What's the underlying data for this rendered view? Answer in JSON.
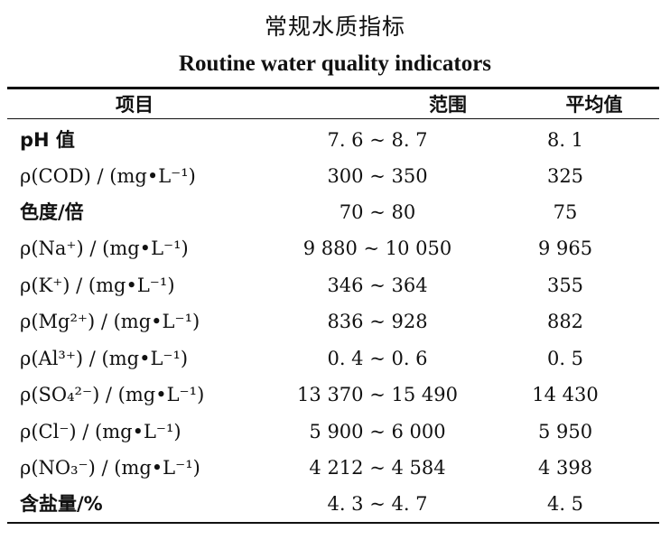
{
  "title_zh": "常规水质指标",
  "title_en": "Routine water quality indicators",
  "headers": {
    "item": "项目",
    "range": "范围",
    "average": "平均值"
  },
  "rows": [
    {
      "name": "pH 值",
      "range": "7. 6 ~ 8. 7",
      "avg": "8. 1"
    },
    {
      "name": "ρ(COD) / (mg•L⁻¹)",
      "range": "300 ~ 350",
      "avg": "325"
    },
    {
      "name": "色度/倍",
      "range": "70 ~ 80",
      "avg": "75"
    },
    {
      "name": "ρ(Na⁺) / (mg•L⁻¹)",
      "range": "9 880 ~ 10 050",
      "avg": "9 965"
    },
    {
      "name": "ρ(K⁺) / (mg•L⁻¹)",
      "range": "346 ~ 364",
      "avg": "355"
    },
    {
      "name": "ρ(Mg²⁺) / (mg•L⁻¹)",
      "range": "836 ~ 928",
      "avg": "882"
    },
    {
      "name": "ρ(Al³⁺) / (mg•L⁻¹)",
      "range": "0. 4 ~ 0. 6",
      "avg": "0. 5"
    },
    {
      "name": "ρ(SO₄²⁻) / (mg•L⁻¹)",
      "range": "13 370 ~ 15 490",
      "avg": "14 430"
    },
    {
      "name": "ρ(Cl⁻) / (mg•L⁻¹)",
      "range": "5 900 ~ 6 000",
      "avg": "5 950"
    },
    {
      "name": "ρ(NO₃⁻) / (mg•L⁻¹)",
      "range": "4 212 ~ 4 584",
      "avg": "4 398"
    },
    {
      "name": "含盐量/%",
      "range": "4. 3 ~ 4. 7",
      "avg": "4. 5"
    }
  ]
}
